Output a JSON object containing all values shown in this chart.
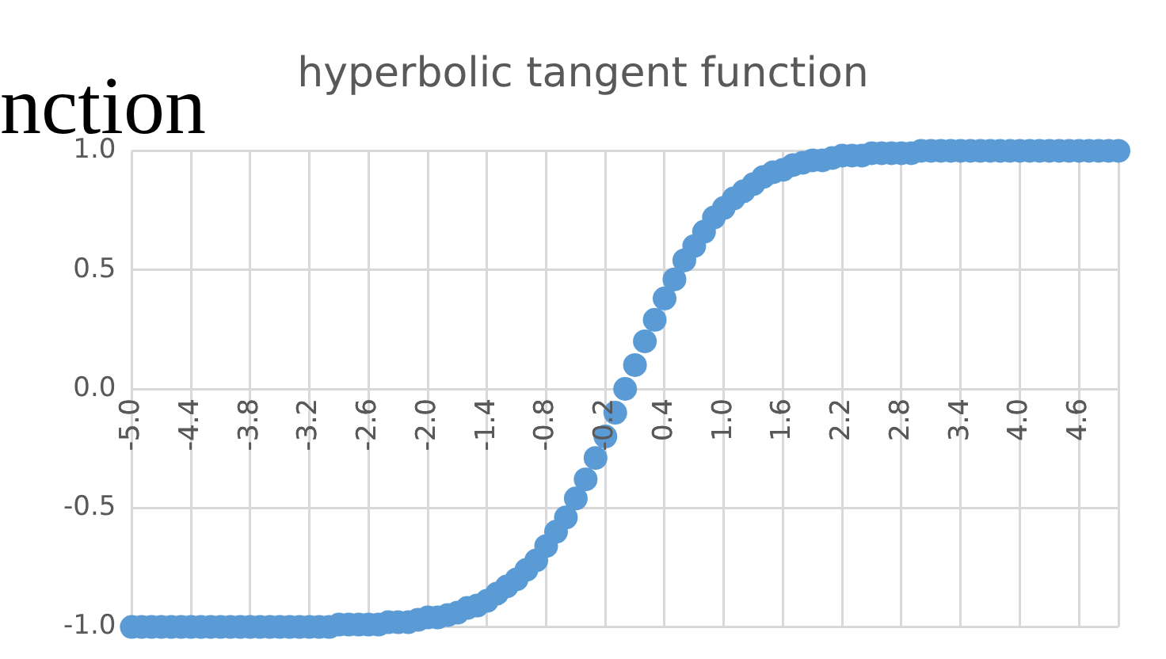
{
  "chart_data": {
    "type": "scatter",
    "title": "hyperbolic tangent function",
    "annotations": [
      "nction"
    ],
    "categories": [
      "-5.0",
      null,
      null,
      null,
      null,
      null,
      "-4.4",
      null,
      null,
      null,
      null,
      null,
      "-3.8",
      null,
      null,
      null,
      null,
      null,
      "-3.2",
      null,
      null,
      null,
      null,
      null,
      "-2.6",
      null,
      null,
      null,
      null,
      null,
      "-2.0",
      null,
      null,
      null,
      null,
      null,
      "-1.4",
      null,
      null,
      null,
      null,
      null,
      "-0.8",
      null,
      null,
      null,
      null,
      null,
      "-0.2",
      null,
      null,
      null,
      null,
      null,
      "0.4",
      null,
      null,
      null,
      null,
      null,
      "1.0",
      null,
      null,
      null,
      null,
      null,
      "1.6",
      null,
      null,
      null,
      null,
      null,
      "2.2",
      null,
      null,
      null,
      null,
      null,
      "2.8",
      null,
      null,
      null,
      null,
      null,
      "3.4",
      null,
      null,
      null,
      null,
      null,
      "4.0",
      null,
      null,
      null,
      null,
      null,
      "4.6",
      null,
      null,
      null,
      null
    ],
    "series": [
      {
        "color": "#5b9bd5",
        "values": [
          -1,
          -1,
          -1,
          -1,
          -1,
          -1,
          -1,
          -1,
          -1,
          -1,
          -1,
          -1,
          -1,
          -1,
          -1,
          -1,
          -1,
          -1,
          -1,
          -1,
          -1,
          -0.99,
          -0.99,
          -0.99,
          -0.99,
          -0.99,
          -0.98,
          -0.98,
          -0.98,
          -0.97,
          -0.96,
          -0.96,
          -0.95,
          -0.94,
          -0.92,
          -0.91,
          -0.89,
          -0.86,
          -0.83,
          -0.8,
          -0.76,
          -0.72,
          -0.66,
          -0.6,
          -0.54,
          -0.46,
          -0.38,
          -0.29,
          -0.2,
          -0.1,
          0,
          0.1,
          0.2,
          0.29,
          0.38,
          0.46,
          0.54,
          0.6,
          0.66,
          0.72,
          0.76,
          0.8,
          0.83,
          0.86,
          0.89,
          0.91,
          0.92,
          0.94,
          0.95,
          0.96,
          0.96,
          0.97,
          0.98,
          0.98,
          0.98,
          0.99,
          0.99,
          0.99,
          0.99,
          0.99,
          1,
          1,
          1,
          1,
          1,
          1,
          1,
          1,
          1,
          1,
          1,
          1,
          1,
          1,
          1,
          1,
          1,
          1,
          1,
          1,
          1
        ]
      }
    ],
    "ylim": [
      -1,
      1
    ],
    "yticks": [
      {
        "value": -1,
        "label": "-1.0"
      },
      {
        "value": -0.5,
        "label": "-0.5"
      },
      {
        "value": 0,
        "label": "0.0"
      },
      {
        "value": 0.5,
        "label": "0.5"
      },
      {
        "value": 1,
        "label": "1.0"
      }
    ],
    "grid": true,
    "legend": false,
    "marker": "circle"
  }
}
